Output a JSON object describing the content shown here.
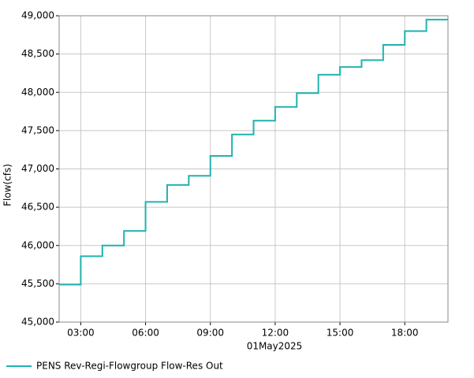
{
  "chart_data": {
    "type": "step",
    "y_axis_label": "Flow(cfs)",
    "x_axis_label": "01May2025",
    "x": [
      "02:00",
      "03:00",
      "04:00",
      "05:00",
      "06:00",
      "07:00",
      "08:00",
      "09:00",
      "10:00",
      "11:00",
      "12:00",
      "13:00",
      "14:00",
      "15:00",
      "16:00",
      "17:00",
      "18:00",
      "19:00"
    ],
    "series": [
      {
        "name": "PENS Rev-Regi-Flowgroup Flow-Res Out",
        "color": "#1fb3ae",
        "values": [
          45490,
          45860,
          46000,
          46190,
          46570,
          46790,
          46910,
          47170,
          47450,
          47630,
          47810,
          47990,
          48230,
          48330,
          48420,
          48620,
          48800,
          48950
        ]
      }
    ],
    "xlim": [
      "02:00",
      "20:00"
    ],
    "xticks": [
      "03:00",
      "06:00",
      "09:00",
      "12:00",
      "15:00",
      "18:00"
    ],
    "ylim": [
      45000,
      49000
    ],
    "yticks": [
      {
        "value": 45000,
        "label": "45,000"
      },
      {
        "value": 45500,
        "label": "45,500"
      },
      {
        "value": 46000,
        "label": "46,000"
      },
      {
        "value": 46500,
        "label": "46,500"
      },
      {
        "value": 47000,
        "label": "47,000"
      },
      {
        "value": 47500,
        "label": "47,500"
      },
      {
        "value": 48000,
        "label": "48,000"
      },
      {
        "value": 48500,
        "label": "48,500"
      },
      {
        "value": 49000,
        "label": "49,000"
      }
    ],
    "grid": true,
    "legend": "bottom"
  }
}
